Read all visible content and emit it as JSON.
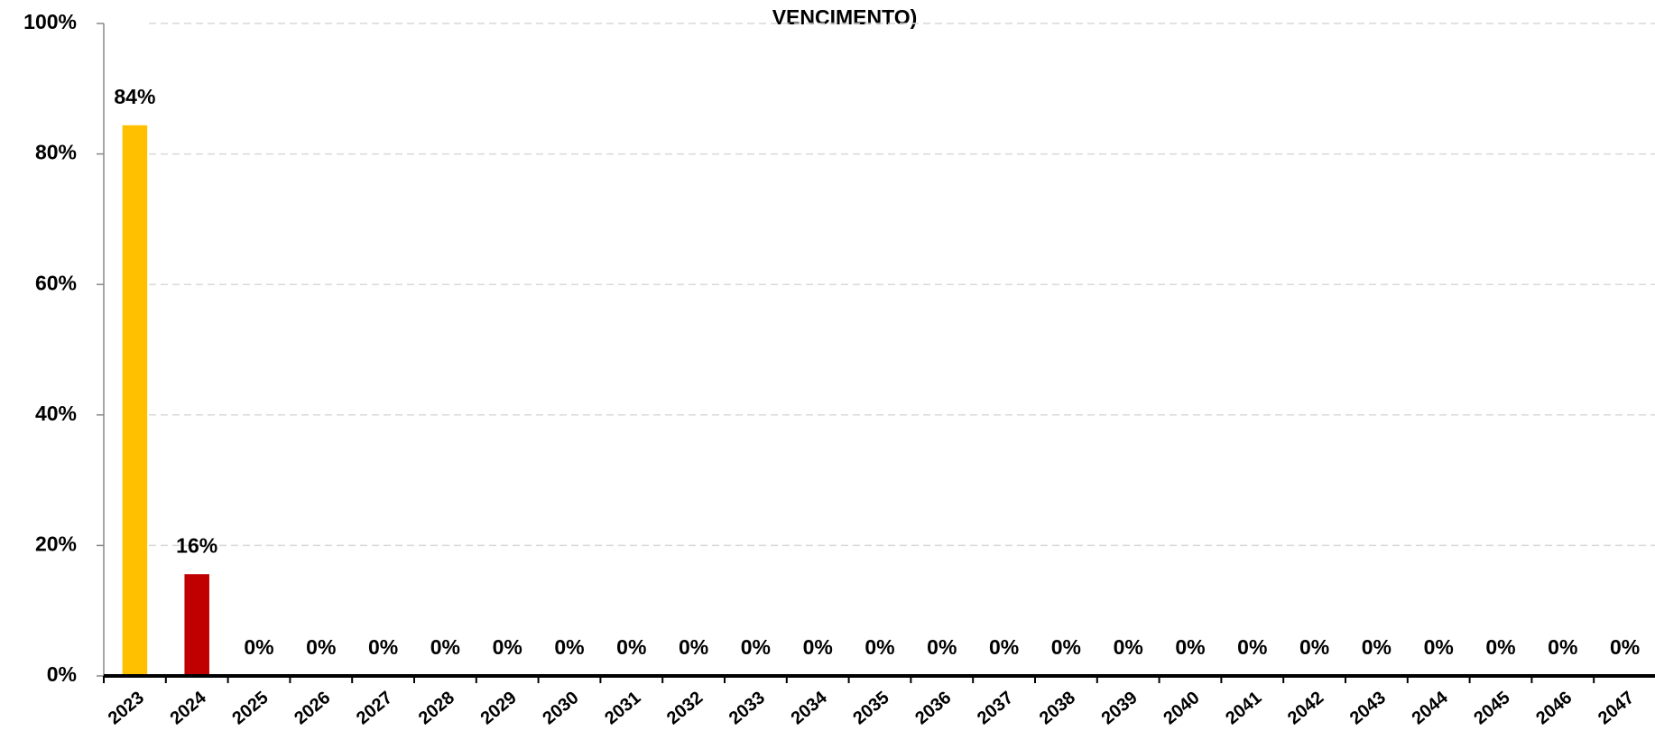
{
  "chart_data": {
    "type": "bar",
    "title": "VENCIMENTO)",
    "categories": [
      "2023",
      "2024",
      "2025",
      "2026",
      "2027",
      "2028",
      "2029",
      "2030",
      "2031",
      "2032",
      "2033",
      "2034",
      "2035",
      "2036",
      "2037",
      "2038",
      "2039",
      "2040",
      "2041",
      "2042",
      "2043",
      "2044",
      "2045",
      "2046",
      "2047"
    ],
    "values": [
      84.4,
      15.6,
      0,
      0,
      0,
      0,
      0,
      0,
      0,
      0,
      0,
      0,
      0,
      0,
      0,
      0,
      0,
      0,
      0,
      0,
      0,
      0,
      0,
      0,
      0
    ],
    "value_labels": [
      "84%",
      "16%",
      "0%",
      "0%",
      "0%",
      "0%",
      "0%",
      "0%",
      "0%",
      "0%",
      "0%",
      "0%",
      "0%",
      "0%",
      "0%",
      "0%",
      "0%",
      "0%",
      "0%",
      "0%",
      "0%",
      "0%",
      "0%",
      "0%",
      "0%"
    ],
    "colors": [
      "#ffc000",
      "#c00000",
      "#c00000",
      "#c00000",
      "#c00000",
      "#c00000",
      "#c00000",
      "#c00000",
      "#c00000",
      "#c00000",
      "#c00000",
      "#c00000",
      "#c00000",
      "#c00000",
      "#c00000",
      "#c00000",
      "#c00000",
      "#c00000",
      "#c00000",
      "#c00000",
      "#c00000",
      "#c00000",
      "#c00000",
      "#c00000",
      "#c00000"
    ],
    "ylim": [
      0,
      100
    ],
    "yticks": [
      {
        "value": 0,
        "label": "0%"
      },
      {
        "value": 20,
        "label": "20%"
      },
      {
        "value": 40,
        "label": "40%"
      },
      {
        "value": 60,
        "label": "60%"
      },
      {
        "value": 80,
        "label": "80%"
      },
      {
        "value": 100,
        "label": "100%"
      }
    ],
    "grid": true
  }
}
